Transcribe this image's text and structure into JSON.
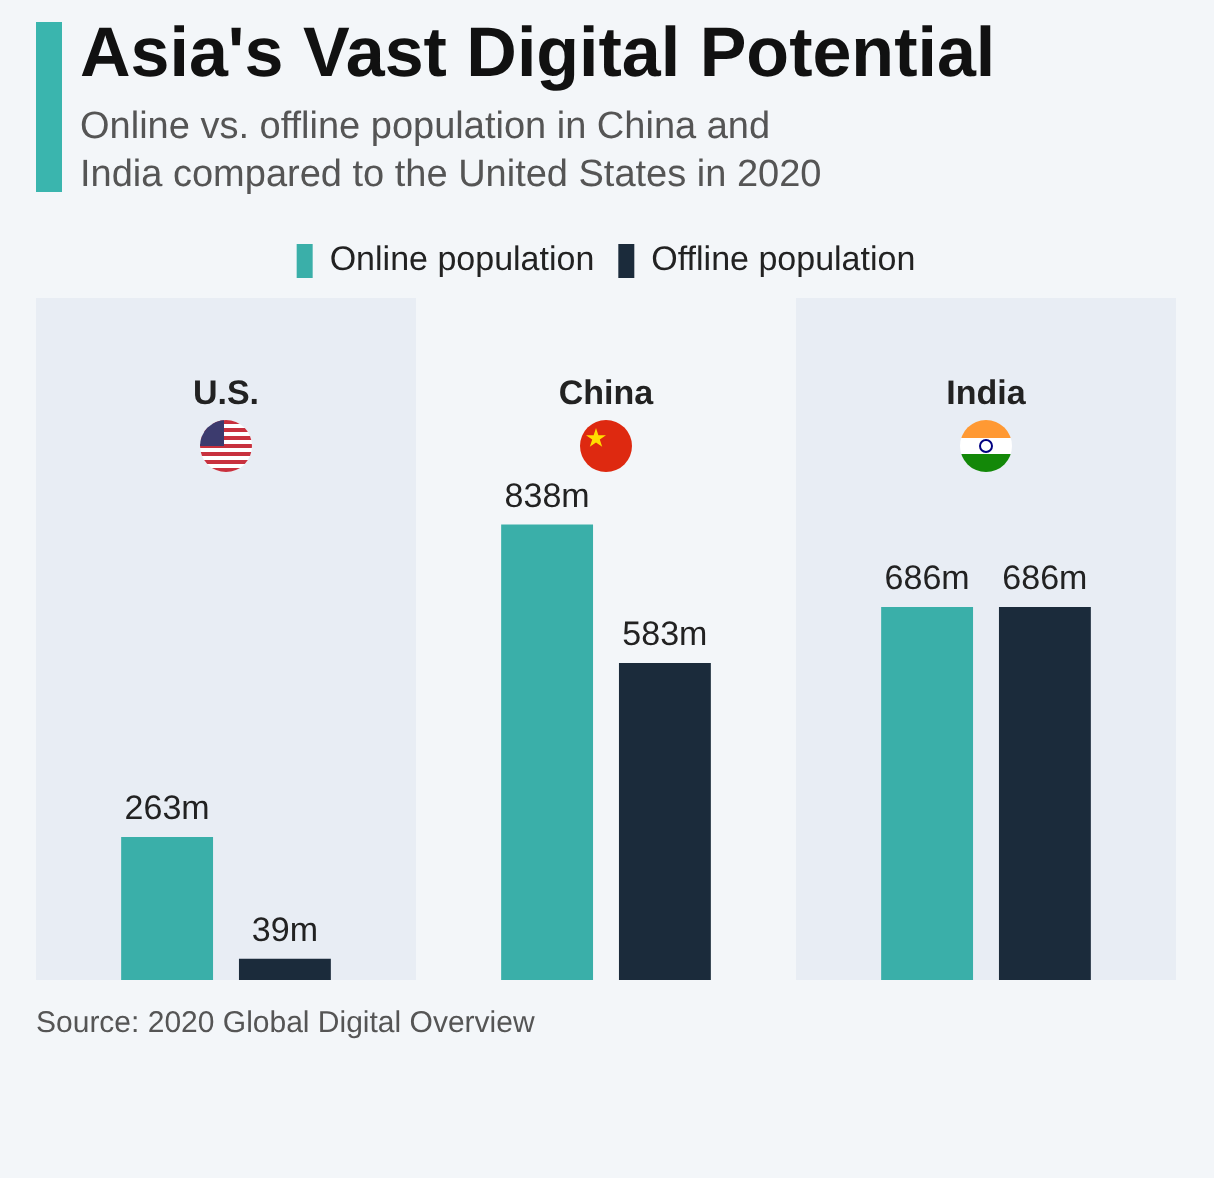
{
  "chart_data": {
    "type": "bar",
    "title": "Asia's Vast Digital Potential",
    "subtitle": "Online vs. offline population in China and India compared to the United States in 2020",
    "categories": [
      "U.S.",
      "China",
      "India"
    ],
    "series": [
      {
        "name": "Online population",
        "color": "#3aafa9",
        "values": [
          263,
          838,
          686
        ],
        "value_labels": [
          "263m",
          "838m",
          "686m"
        ]
      },
      {
        "name": "Offline population",
        "color": "#1b2b3b",
        "values": [
          39,
          583,
          686
        ],
        "value_labels": [
          "39m",
          "583m",
          "686m"
        ]
      }
    ],
    "tick_labels": "x",
    "grid": false,
    "legend": "top",
    "annotations": [
      "Source: 2020 Global Digital Overview"
    ]
  }
}
